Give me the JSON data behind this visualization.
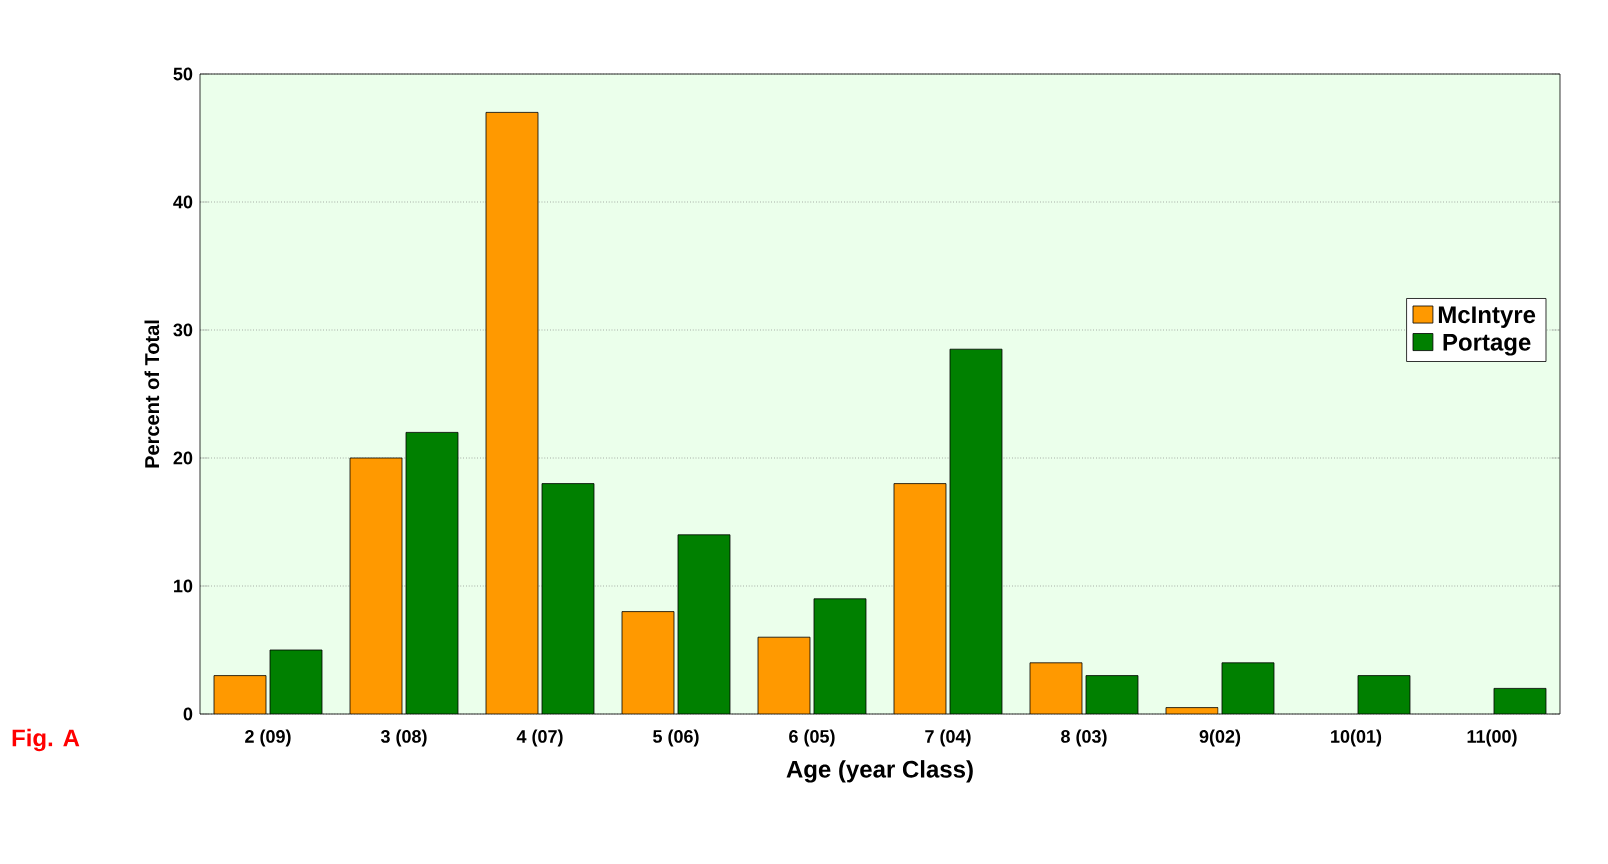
{
  "chart_data": {
    "type": "bar",
    "xlabel": "Age (year Class)",
    "ylabel": "Percent of Total",
    "categories": [
      "2 (09)",
      "3 (08)",
      "4 (07)",
      "5 (06)",
      "6 (05)",
      "7 (04)",
      "8 (03)",
      "9(02)",
      "10(01)",
      "11(00)"
    ],
    "series": [
      {
        "name": "McIntyre",
        "color": "#ff9900",
        "values": [
          3,
          20,
          47,
          8,
          6,
          18,
          4,
          0.5,
          null,
          null
        ]
      },
      {
        "name": "Portage",
        "color": "#008000",
        "values": [
          5,
          22,
          18,
          14,
          9,
          28.5,
          3,
          4,
          3,
          2
        ]
      }
    ],
    "ylim": [
      0,
      50
    ],
    "yticks": [
      0,
      10,
      20,
      30,
      40,
      50
    ],
    "grid": "y",
    "legend": "right",
    "annotations": [
      "Fig. A"
    ]
  }
}
